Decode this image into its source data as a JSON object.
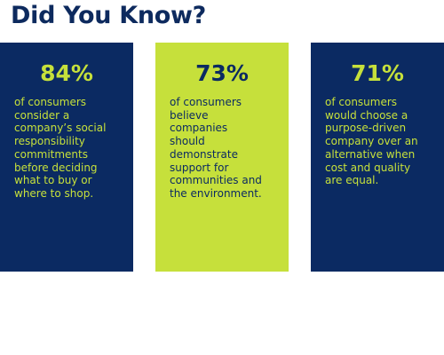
{
  "header": {
    "title": "Did You Know?"
  },
  "cards": [
    {
      "stat": "84%",
      "lines": [
        "of consumers",
        "consider a",
        "company’s social",
        "responsibility",
        "commitments",
        "before deciding",
        "what to buy or",
        "where to shop."
      ]
    },
    {
      "stat": "73%",
      "lines": [
        "of consumers",
        "believe",
        "companies",
        "should",
        "demonstrate",
        "support for",
        "communities and",
        "the environment."
      ]
    },
    {
      "stat": "71%",
      "lines": [
        "of consumers",
        "would choose a",
        "purpose-driven",
        "company over an",
        "alternative when",
        "cost and quality",
        "are equal."
      ]
    }
  ]
}
